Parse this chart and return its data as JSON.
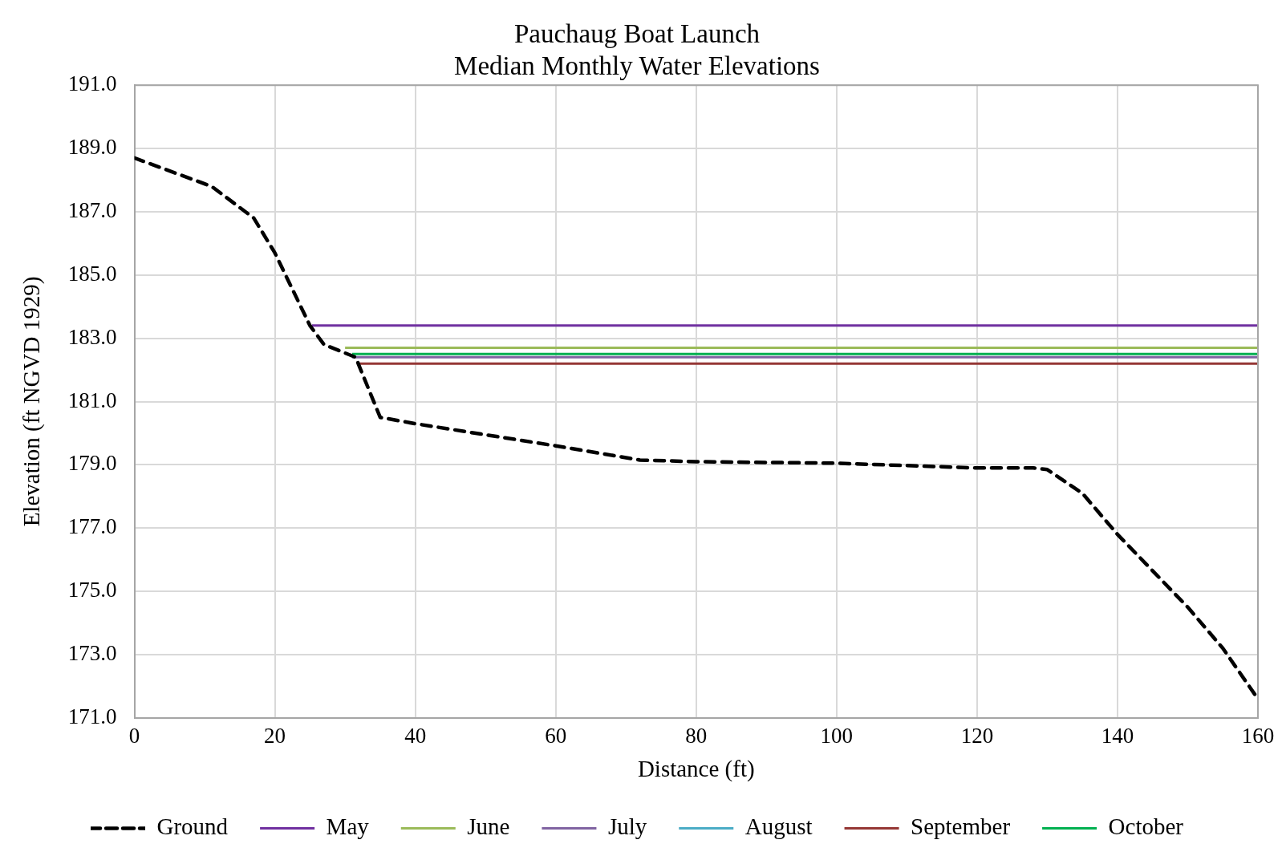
{
  "chart_data": {
    "type": "line",
    "title": "Pauchaug Boat Launch\nMedian Monthly Water Elevations",
    "xlabel": "Distance (ft)",
    "ylabel": "Elevation (ft NGVD 1929)",
    "xlim": [
      0,
      160
    ],
    "xticks": [
      0,
      20,
      40,
      60,
      80,
      100,
      120,
      140,
      160
    ],
    "ylim": [
      171,
      191
    ],
    "yticks": [
      {
        "value": 171,
        "label": "171.0"
      },
      {
        "value": 173,
        "label": "173.0"
      },
      {
        "value": 175,
        "label": "175.0"
      },
      {
        "value": 177,
        "label": "177.0"
      },
      {
        "value": 179,
        "label": "179.0"
      },
      {
        "value": 181,
        "label": "181.0"
      },
      {
        "value": 183,
        "label": "183.0"
      },
      {
        "value": 185,
        "label": "185.0"
      },
      {
        "value": 187,
        "label": "187.0"
      },
      {
        "value": 189,
        "label": "189.0"
      },
      {
        "value": 191,
        "label": "191.0"
      }
    ],
    "grid": true,
    "legend": "bottom",
    "marker": "none",
    "series": [
      {
        "name": "Ground",
        "color": "#000000",
        "line_style": "dashed",
        "x": [
          0,
          11,
          17,
          20,
          25,
          27,
          31.5,
          35,
          40,
          60,
          72,
          80,
          100,
          120,
          128,
          130,
          135,
          140,
          150,
          155,
          160
        ],
        "values": [
          188.7,
          187.8,
          186.8,
          185.7,
          183.4,
          182.8,
          182.4,
          180.5,
          180.3,
          179.6,
          179.15,
          179.1,
          179.05,
          178.9,
          178.9,
          178.85,
          178.1,
          176.8,
          174.5,
          173.2,
          171.6
        ]
      },
      {
        "name": "May",
        "color": "#7030a0",
        "line_style": "solid",
        "x": [
          25.3,
          160
        ],
        "values": [
          183.4,
          183.4
        ]
      },
      {
        "name": "June",
        "color": "#9bbb59",
        "line_style": "solid",
        "x": [
          30,
          160
        ],
        "values": [
          182.7,
          182.7
        ]
      },
      {
        "name": "July",
        "color": "#8064a2",
        "line_style": "solid",
        "x": [
          31,
          160
        ],
        "values": [
          182.4,
          182.4
        ]
      },
      {
        "name": "August",
        "color": "#4bacc6",
        "line_style": "solid"
      },
      {
        "name": "September",
        "color": "#953735",
        "line_style": "solid",
        "x": [
          32,
          160
        ],
        "values": [
          182.2,
          182.2
        ]
      },
      {
        "name": "October",
        "color": "#00b050",
        "line_style": "solid",
        "x": [
          31,
          160
        ],
        "values": [
          182.5,
          182.5
        ]
      }
    ]
  }
}
